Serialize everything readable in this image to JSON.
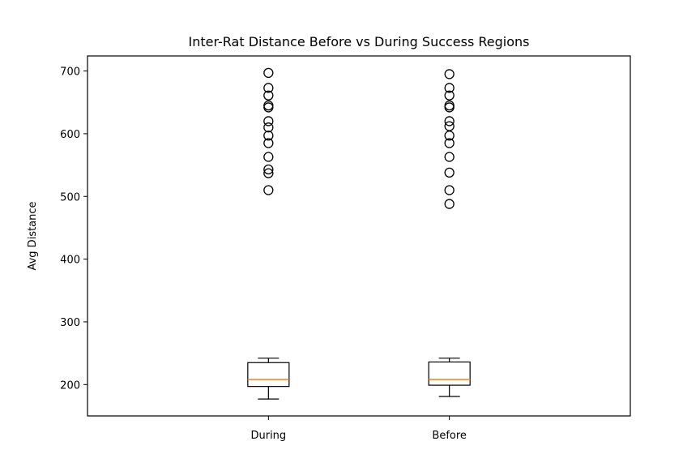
{
  "chart_data": {
    "type": "box",
    "title": "Inter-Rat Distance Before vs During Success Regions",
    "xlabel": "",
    "ylabel": "Avg Distance",
    "ylim": [
      150,
      724
    ],
    "yticks": [
      200,
      300,
      400,
      500,
      600,
      700
    ],
    "categories": [
      "During",
      "Before"
    ],
    "series": [
      {
        "name": "During",
        "whisker_low": 177,
        "q1": 197,
        "median": 208,
        "q3": 235,
        "whisker_high": 242,
        "outliers": [
          510,
          537,
          543,
          563,
          585,
          597,
          610,
          620,
          642,
          645,
          661,
          673,
          697
        ]
      },
      {
        "name": "Before",
        "whisker_low": 181,
        "q1": 199,
        "median": 208,
        "q3": 236,
        "whisker_high": 242,
        "outliers": [
          488,
          510,
          538,
          563,
          585,
          597,
          612,
          620,
          642,
          645,
          661,
          673,
          695
        ]
      }
    ],
    "colors": {
      "box": "#000000",
      "median": "#ff7f0e",
      "outlier": "#000000"
    }
  }
}
